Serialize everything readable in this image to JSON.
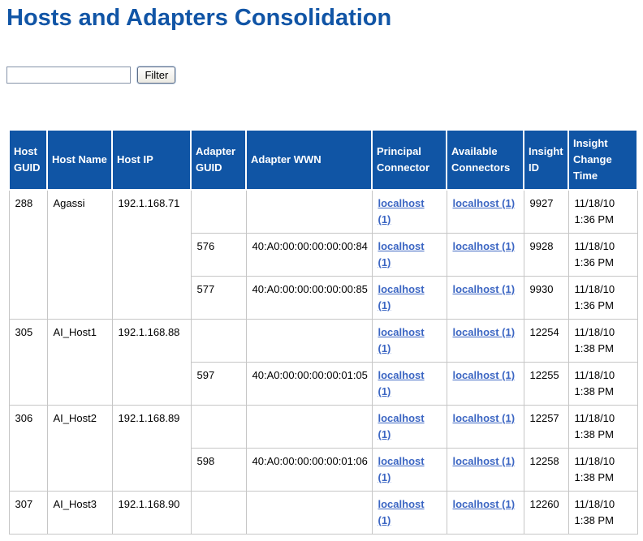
{
  "page": {
    "title": "Hosts and Adapters Consolidation"
  },
  "filter": {
    "input_value": "",
    "button_label": "Filter"
  },
  "colors": {
    "title_blue": "#1155a6",
    "header_background": "#1055a5",
    "header_text": "#ffffff",
    "link_blue": "#3c66c3",
    "grid_border": "#c6c6c6"
  },
  "table": {
    "columns": [
      "Host GUID",
      "Host Name",
      "Host IP",
      "Adapter GUID",
      "Adapter WWN",
      "Principal Connector",
      "Available Connectors",
      "Insight ID",
      "Insight Change Time"
    ],
    "groups": [
      {
        "host_guid": "288",
        "host_name": "Agassi",
        "host_ip": "192.1.168.71",
        "adapters": [
          {
            "adapter_guid": "",
            "adapter_wwn": "",
            "principal_connector": "localhost (1)",
            "available_connectors": "localhost (1)",
            "insight_id": "9927",
            "insight_change_time": "11/18/10 1:36 PM"
          },
          {
            "adapter_guid": "576",
            "adapter_wwn": "40:A0:00:00:00:00:00:84",
            "principal_connector": "localhost (1)",
            "available_connectors": "localhost (1)",
            "insight_id": "9928",
            "insight_change_time": "11/18/10 1:36 PM"
          },
          {
            "adapter_guid": "577",
            "adapter_wwn": "40:A0:00:00:00:00:00:85",
            "principal_connector": "localhost (1)",
            "available_connectors": "localhost (1)",
            "insight_id": "9930",
            "insight_change_time": "11/18/10 1:36 PM"
          }
        ]
      },
      {
        "host_guid": "305",
        "host_name": "AI_Host1",
        "host_ip": "192.1.168.88",
        "adapters": [
          {
            "adapter_guid": "",
            "adapter_wwn": "",
            "principal_connector": "localhost (1)",
            "available_connectors": "localhost (1)",
            "insight_id": "12254",
            "insight_change_time": "11/18/10 1:38 PM"
          },
          {
            "adapter_guid": "597",
            "adapter_wwn": "40:A0:00:00:00:00:01:05",
            "principal_connector": "localhost (1)",
            "available_connectors": "localhost (1)",
            "insight_id": "12255",
            "insight_change_time": "11/18/10 1:38 PM"
          }
        ]
      },
      {
        "host_guid": "306",
        "host_name": "AI_Host2",
        "host_ip": "192.1.168.89",
        "adapters": [
          {
            "adapter_guid": "",
            "adapter_wwn": "",
            "principal_connector": "localhost (1)",
            "available_connectors": "localhost (1)",
            "insight_id": "12257",
            "insight_change_time": "11/18/10 1:38 PM"
          },
          {
            "adapter_guid": "598",
            "adapter_wwn": "40:A0:00:00:00:00:01:06",
            "principal_connector": "localhost (1)",
            "available_connectors": "localhost (1)",
            "insight_id": "12258",
            "insight_change_time": "11/18/10 1:38 PM"
          }
        ]
      },
      {
        "host_guid": "307",
        "host_name": "AI_Host3",
        "host_ip": "192.1.168.90",
        "adapters": [
          {
            "adapter_guid": "",
            "adapter_wwn": "",
            "principal_connector": "localhost (1)",
            "available_connectors": "localhost (1)",
            "insight_id": "12260",
            "insight_change_time": "11/18/10 1:38 PM"
          }
        ]
      }
    ]
  }
}
